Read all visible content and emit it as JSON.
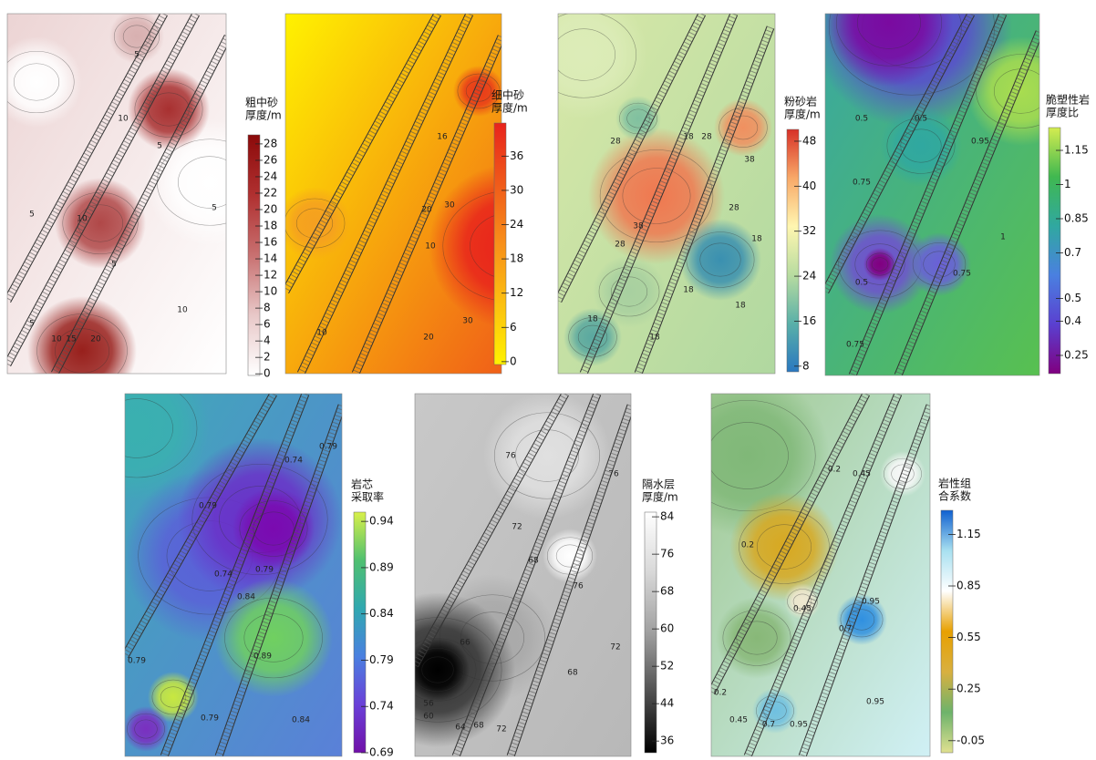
{
  "chart_data": [
    {
      "type": "contour",
      "title": [
        "粗中砂",
        "厚度/m"
      ],
      "clim": [
        -0.2,
        29.1
      ],
      "colorbar_ticks": [
        28,
        26,
        24,
        22,
        20,
        18,
        16,
        14,
        12,
        10,
        8,
        6,
        4,
        2,
        0
      ],
      "colors": [
        "#ffffff",
        "#e8c8c8",
        "#c87070",
        "#b03030",
        "#8b0a0a"
      ],
      "contour_labels": [
        5,
        10,
        5,
        5,
        10,
        5,
        5,
        10,
        5,
        10,
        15,
        20
      ]
    },
    {
      "type": "contour",
      "title": [
        "细中砂",
        "厚度/m"
      ],
      "clim": [
        -0.5,
        41.8
      ],
      "colorbar_ticks": [
        36,
        30,
        24,
        18,
        12,
        6,
        0
      ],
      "colors": [
        "#fff200",
        "#fcc010",
        "#f8901a",
        "#f05a1a",
        "#e8231c"
      ],
      "contour_labels": [
        16,
        20,
        30,
        10,
        10,
        20,
        30
      ]
    },
    {
      "type": "contour",
      "title": [
        "粉砂岩",
        "厚度/m"
      ],
      "clim": [
        7,
        50.1
      ],
      "colorbar_ticks": [
        48,
        40,
        32,
        24,
        16,
        8
      ],
      "colors": [
        "#2a78c0",
        "#5ab0a8",
        "#b8dca0",
        "#fff6b0",
        "#f8a868",
        "#d73027"
      ],
      "contour_labels": [
        28,
        18,
        28,
        38,
        38,
        28,
        28,
        18,
        18,
        18,
        18,
        18
      ]
    },
    {
      "type": "contour",
      "title": [
        "脆塑性岩",
        "厚度比"
      ],
      "clim": [
        0.17,
        1.25
      ],
      "colorbar_ticks": [
        1.15,
        1,
        0.85,
        0.7,
        0.5,
        0.4,
        0.25
      ],
      "colors": [
        "#800080",
        "#5a40d0",
        "#4a80e0",
        "#30a8a0",
        "#40b850",
        "#d4ec50"
      ],
      "contour_labels": [
        0.5,
        0.5,
        0.95,
        0.75,
        1,
        0.75,
        0.5,
        0.75
      ]
    },
    {
      "type": "contour",
      "title": [
        "岩芯",
        "采取率"
      ],
      "clim": [
        0.69,
        0.95
      ],
      "colors": [
        "#7010a8",
        "#6a40d8",
        "#4a80e0",
        "#30a8b0",
        "#50c070",
        "#d8f04a"
      ],
      "colorbar_ticks": [
        0.94,
        0.89,
        0.84,
        0.79,
        0.74,
        0.69
      ],
      "contour_labels": [
        0.79,
        0.74,
        0.79,
        0.74,
        0.79,
        0.84,
        0.89,
        0.79,
        0.79,
        0.84
      ]
    },
    {
      "type": "contour",
      "title": [
        "隔水层",
        "厚度/m"
      ],
      "clim": [
        33.5,
        85
      ],
      "colorbar_ticks": [
        84,
        76,
        68,
        60,
        52,
        44,
        36
      ],
      "colors": [
        "#000000",
        "#505050",
        "#a0a0a0",
        "#d8d8d8",
        "#ffffff"
      ],
      "contour_labels": [
        76,
        76,
        72,
        68,
        76,
        72,
        66,
        68,
        56,
        60,
        64,
        68,
        72
      ]
    },
    {
      "type": "contour",
      "title": [
        "岩性组",
        "合系数"
      ],
      "clim": [
        -0.12,
        1.29
      ],
      "colorbar_ticks": [
        1.15,
        0.85,
        0.55,
        0.25,
        -0.05
      ],
      "colors": [
        "#e0e090",
        "#6db36b",
        "#d8b040",
        "#e8a000",
        "#ffffff",
        "#a8e0f0",
        "#1060d0"
      ],
      "contour_labels": [
        0.2,
        0.45,
        0.2,
        0.45,
        0.95,
        0.7,
        0.2,
        0.45,
        0.7,
        0.95,
        0.95
      ]
    }
  ]
}
